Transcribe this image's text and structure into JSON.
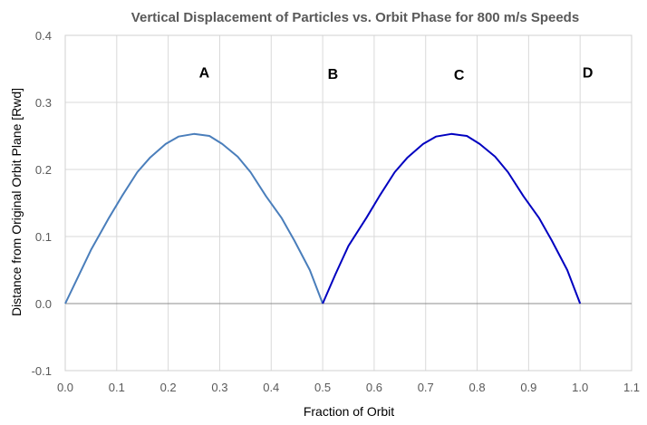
{
  "chart_data": {
    "type": "line",
    "title": "Vertical Displacement of Particles vs. Orbit Phase for 800 m/s Speeds",
    "xlabel": "Fraction of Orbit",
    "ylabel": "Distance from Original Orbit Plane [Rwd]",
    "xlim": [
      0.0,
      1.1
    ],
    "ylim": [
      -0.1,
      0.4
    ],
    "x_ticks": [
      "0.0",
      "0.1",
      "0.2",
      "0.3",
      "0.4",
      "0.5",
      "0.6",
      "0.7",
      "0.8",
      "0.9",
      "1.0",
      "1.1"
    ],
    "y_ticks": [
      "0.4",
      "0.3",
      "0.2",
      "0.1",
      "0.0",
      "-0.1"
    ],
    "grid": true,
    "legend": "none",
    "series": [
      {
        "color": "#4a7ebb",
        "x": [
          0.0,
          0.025,
          0.05,
          0.085,
          0.11,
          0.14,
          0.165,
          0.195,
          0.22,
          0.25,
          0.28,
          0.305,
          0.335,
          0.36,
          0.39,
          0.42,
          0.445,
          0.475,
          0.5
        ],
        "y": [
          0.0,
          0.04,
          0.08,
          0.128,
          0.16,
          0.196,
          0.218,
          0.238,
          0.249,
          0.253,
          0.25,
          0.238,
          0.219,
          0.196,
          0.16,
          0.128,
          0.094,
          0.05,
          0.0
        ]
      },
      {
        "color": "#0000c0",
        "x": [
          0.5,
          0.525,
          0.55,
          0.585,
          0.61,
          0.64,
          0.665,
          0.695,
          0.72,
          0.75,
          0.78,
          0.805,
          0.835,
          0.86,
          0.89,
          0.92,
          0.945,
          0.975,
          1.0
        ],
        "y": [
          0.0,
          0.044,
          0.086,
          0.128,
          0.16,
          0.196,
          0.218,
          0.238,
          0.249,
          0.253,
          0.25,
          0.238,
          0.219,
          0.196,
          0.16,
          0.128,
          0.094,
          0.05,
          0.0
        ]
      }
    ],
    "annotations": [
      {
        "text": "A",
        "x": 0.27,
        "y": 0.345
      },
      {
        "text": "B",
        "x": 0.52,
        "y": 0.343
      },
      {
        "text": "C",
        "x": 0.765,
        "y": 0.342
      },
      {
        "text": "D",
        "x": 1.015,
        "y": 0.345
      }
    ]
  }
}
